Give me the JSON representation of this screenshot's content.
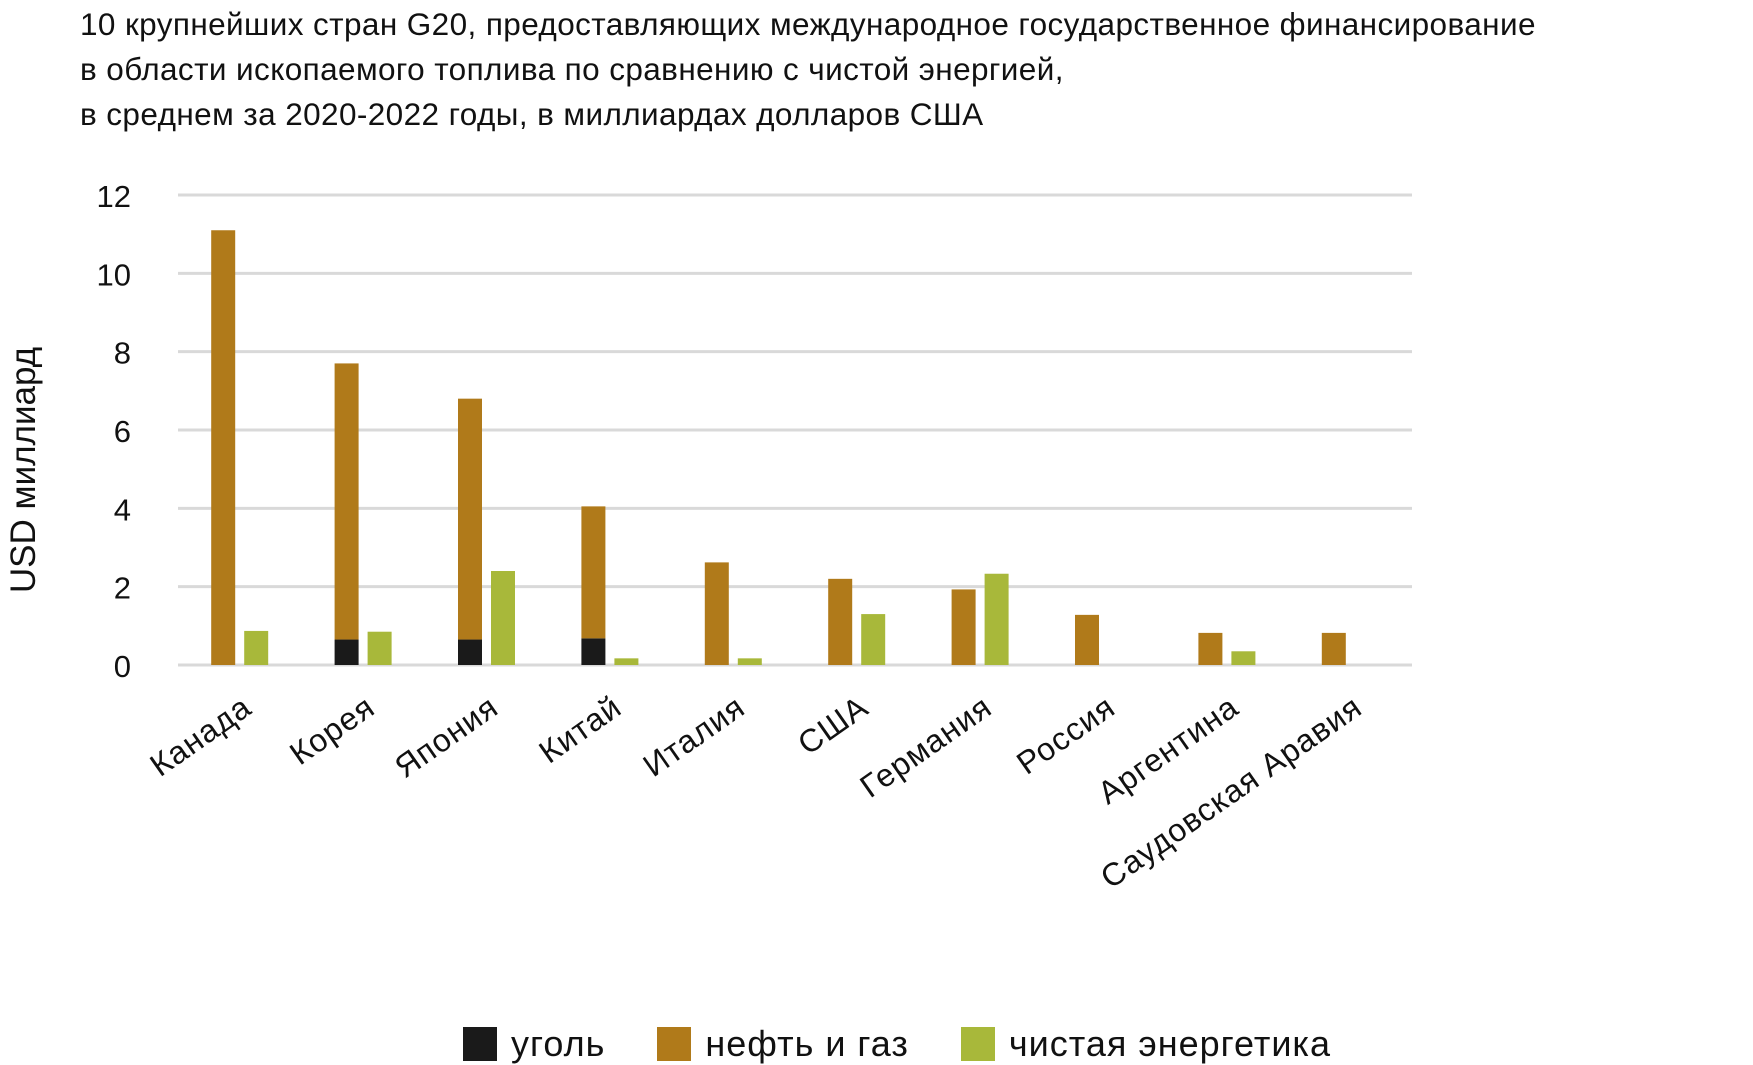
{
  "chart_data": {
    "type": "bar",
    "title_lines": [
      "10 крупнейших стран G20, предоставляющих международное государственное финансирование",
      "в области ископаемого топлива по сравнению с чистой энергией,",
      "в среднем за 2020-2022 годы, в миллиардах долларов США"
    ],
    "ylabel": "USD миллиард",
    "xlabel": "",
    "ylim": [
      0,
      12
    ],
    "yticks": [
      "0",
      "2",
      "4",
      "6",
      "8",
      "10",
      "12"
    ],
    "grid": true,
    "legend_position": "bottom",
    "categories": [
      "Канада",
      "Корея",
      "Япония",
      "Китай",
      "Италия",
      "США",
      "Германия",
      "Россия",
      "Аргентина",
      "Саудовская Аравия"
    ],
    "series": [
      {
        "name": "уголь",
        "color": "#1a1a1a",
        "values": [
          0,
          0.65,
          0.65,
          0.68,
          0,
          0,
          0,
          0,
          0,
          0
        ]
      },
      {
        "name": "нефть и газ",
        "color": "#b07a1a",
        "values": [
          11.1,
          7.05,
          6.15,
          3.37,
          2.62,
          2.2,
          1.93,
          1.28,
          0.82,
          0.82
        ]
      },
      {
        "name": "чистая энергетика",
        "color": "#a8b83a",
        "values": [
          0.87,
          0.85,
          2.4,
          0.17,
          0.17,
          1.3,
          2.33,
          0,
          0.35,
          0
        ]
      }
    ],
    "stacking": "уголь and нефть и газ stacked in one bar; чистая энергетика as separate adjacent bar"
  }
}
